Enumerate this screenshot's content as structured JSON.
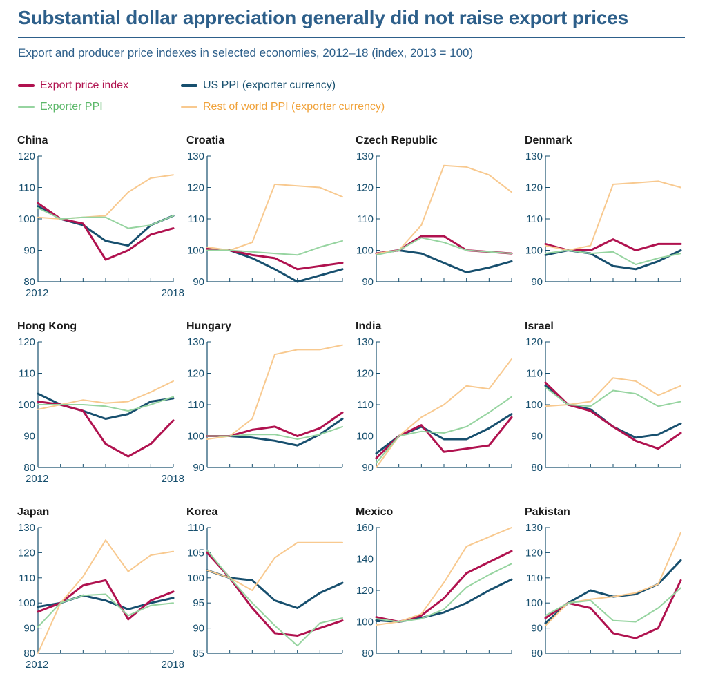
{
  "title": "Substantial dollar appreciation generally did not raise export prices",
  "subtitle": "Export and producer price indexes in selected economies, 2012–18 (index, 2013 = 100)",
  "colors": {
    "title": "#2d5f8a",
    "export_price": "#b0124f",
    "us_ppi": "#174f6e",
    "exporter_ppi": "#96d4a0",
    "row_ppi": "#f8c98f",
    "axis": "#174f6e"
  },
  "legend": {
    "export_price": "Export price index",
    "us_ppi": "US PPI (exporter currency)",
    "exporter_ppi": "Exporter PPI",
    "row_ppi": "Rest of world PPI (exporter currency)"
  },
  "chart_data": [
    {
      "type": "line",
      "title": "China",
      "x": [
        2012,
        2013,
        2014,
        2015,
        2016,
        2017,
        2018
      ],
      "xtick_labels": [
        "2012",
        "2018"
      ],
      "ylim": [
        80,
        120
      ],
      "yticks": [
        80,
        90,
        100,
        110,
        120
      ],
      "series": [
        {
          "name": "Export price index",
          "values": [
            103.5,
            100,
            100.5,
            100.5,
            97,
            98,
            101
          ]
        },
        {
          "name": "US PPI (exporter currency)",
          "values": [
            100.5,
            100,
            100.5,
            101,
            108.5,
            113,
            114
          ]
        },
        {
          "name": "Exporter PPI",
          "values": [
            104,
            100,
            98,
            93,
            91.5,
            98,
            101
          ]
        },
        {
          "name": "Rest of world PPI (exporter currency)",
          "values": [
            105,
            100,
            98.5,
            87,
            90,
            95,
            97
          ]
        }
      ]
    },
    {
      "type": "line",
      "title": "Croatia",
      "x": [
        2012,
        2013,
        2014,
        2015,
        2016,
        2017,
        2018
      ],
      "ylim": [
        90,
        130
      ],
      "yticks": [
        90,
        100,
        110,
        120,
        130
      ],
      "series": [
        {
          "name": "Export price index",
          "values": [
            100,
            100,
            99.5,
            99,
            98.5,
            101,
            103
          ]
        },
        {
          "name": "US PPI (exporter currency)",
          "values": [
            101,
            100,
            102.5,
            121,
            120.5,
            120,
            117
          ]
        },
        {
          "name": "Exporter PPI",
          "values": [
            100.5,
            100,
            97.5,
            94,
            90,
            92,
            94
          ]
        },
        {
          "name": "Rest of world PPI (exporter currency)",
          "values": [
            100.5,
            100,
            98.5,
            97.5,
            94,
            95,
            96
          ]
        }
      ]
    },
    {
      "type": "line",
      "title": "Czech Republic",
      "x": [
        2012,
        2013,
        2014,
        2015,
        2016,
        2017,
        2018
      ],
      "ylim": [
        90,
        130
      ],
      "yticks": [
        90,
        100,
        110,
        120,
        130
      ],
      "series": [
        {
          "name": "Export price index",
          "values": [
            98.5,
            100,
            104,
            102.5,
            100,
            99.5,
            99
          ]
        },
        {
          "name": "US PPI (exporter currency)",
          "values": [
            99,
            100,
            108,
            127,
            126.5,
            124,
            118.5
          ]
        },
        {
          "name": "Exporter PPI",
          "values": [
            99,
            100,
            99,
            96,
            93,
            94.5,
            96.5
          ]
        },
        {
          "name": "Rest of world PPI (exporter currency)",
          "values": [
            99,
            100,
            104.5,
            104.5,
            100,
            99.5,
            99
          ]
        }
      ]
    },
    {
      "type": "line",
      "title": "Denmark",
      "x": [
        2012,
        2013,
        2014,
        2015,
        2016,
        2017,
        2018
      ],
      "ylim": [
        90,
        130
      ],
      "yticks": [
        90,
        100,
        110,
        120,
        130
      ],
      "series": [
        {
          "name": "Export price index",
          "values": [
            99,
            100,
            99,
            99.5,
            95.5,
            97.5,
            99
          ]
        },
        {
          "name": "US PPI (exporter currency)",
          "values": [
            101.5,
            100,
            101.5,
            121,
            121.5,
            122,
            120
          ]
        },
        {
          "name": "Exporter PPI",
          "values": [
            98.5,
            100,
            99,
            95,
            94,
            96.5,
            100
          ]
        },
        {
          "name": "Rest of world PPI (exporter currency)",
          "values": [
            102,
            100,
            100,
            103.5,
            100,
            102,
            102
          ]
        }
      ]
    },
    {
      "type": "line",
      "title": "Hong Kong",
      "x": [
        2012,
        2013,
        2014,
        2015,
        2016,
        2017,
        2018
      ],
      "xtick_labels": [
        "2012",
        "2018"
      ],
      "ylim": [
        80,
        120
      ],
      "yticks": [
        80,
        90,
        100,
        110,
        120
      ],
      "series": [
        {
          "name": "Export price index",
          "values": [
            100,
            100,
            100,
            99.5,
            98,
            100,
            102.5
          ]
        },
        {
          "name": "US PPI (exporter currency)",
          "values": [
            98.5,
            100,
            101.5,
            100.5,
            101,
            104,
            107.5
          ]
        },
        {
          "name": "Exporter PPI",
          "values": [
            103.5,
            100,
            98,
            95.5,
            97,
            101,
            102
          ]
        },
        {
          "name": "Rest of world PPI (exporter currency)",
          "values": [
            101,
            100,
            98,
            87.5,
            83.5,
            87.5,
            95
          ]
        }
      ]
    },
    {
      "type": "line",
      "title": "Hungary",
      "x": [
        2012,
        2013,
        2014,
        2015,
        2016,
        2017,
        2018
      ],
      "ylim": [
        90,
        130
      ],
      "yticks": [
        90,
        100,
        110,
        120,
        130
      ],
      "series": [
        {
          "name": "Export price index",
          "values": [
            100,
            100,
            100.5,
            100.5,
            99,
            100.5,
            103
          ]
        },
        {
          "name": "US PPI (exporter currency)",
          "values": [
            99,
            100,
            105.5,
            126,
            127.5,
            127.5,
            129
          ]
        },
        {
          "name": "Exporter PPI",
          "values": [
            100,
            100,
            99.5,
            98.5,
            97,
            100.5,
            105.5
          ]
        },
        {
          "name": "Rest of world PPI (exporter currency)",
          "values": [
            100,
            100,
            102,
            103,
            100,
            102.5,
            107.5
          ]
        }
      ]
    },
    {
      "type": "line",
      "title": "India",
      "x": [
        2012,
        2013,
        2014,
        2015,
        2016,
        2017,
        2018
      ],
      "ylim": [
        90,
        130
      ],
      "yticks": [
        90,
        100,
        110,
        120,
        130
      ],
      "series": [
        {
          "name": "Export price index",
          "values": [
            91.5,
            100,
            101.5,
            101,
            103,
            107.5,
            112.5
          ]
        },
        {
          "name": "US PPI (exporter currency)",
          "values": [
            89,
            100,
            106,
            110,
            116,
            115,
            124.5
          ]
        },
        {
          "name": "Exporter PPI",
          "values": [
            94.5,
            100,
            103,
            99,
            99,
            102.5,
            107
          ]
        },
        {
          "name": "Rest of world PPI (exporter currency)",
          "values": [
            93,
            100,
            103.5,
            95,
            96,
            97,
            106
          ]
        }
      ]
    },
    {
      "type": "line",
      "title": "Israel",
      "x": [
        2012,
        2013,
        2014,
        2015,
        2016,
        2017,
        2018
      ],
      "ylim": [
        80,
        120
      ],
      "yticks": [
        80,
        90,
        100,
        110,
        120
      ],
      "series": [
        {
          "name": "Export price index",
          "values": [
            105.5,
            100,
            99.5,
            104.5,
            103.5,
            99.5,
            101
          ]
        },
        {
          "name": "US PPI (exporter currency)",
          "values": [
            99.5,
            100,
            101,
            108.5,
            107.5,
            103,
            106
          ]
        },
        {
          "name": "Exporter PPI",
          "values": [
            106,
            100,
            98.5,
            93,
            89.5,
            90.5,
            94
          ]
        },
        {
          "name": "Rest of world PPI (exporter currency)",
          "values": [
            107,
            100,
            98,
            93,
            88.5,
            86,
            91
          ]
        }
      ]
    },
    {
      "type": "line",
      "title": "Japan",
      "x": [
        2012,
        2013,
        2014,
        2015,
        2016,
        2017,
        2018
      ],
      "xtick_labels": [
        "2012",
        "2018"
      ],
      "ylim": [
        80,
        130
      ],
      "yticks": [
        80,
        90,
        100,
        110,
        120,
        130
      ],
      "series": [
        {
          "name": "Export price index",
          "values": [
            90.5,
            100,
            103,
            103.5,
            95,
            99,
            100
          ]
        },
        {
          "name": "US PPI (exporter currency)",
          "values": [
            80,
            100,
            110.5,
            125,
            112.5,
            119,
            120.5
          ]
        },
        {
          "name": "Exporter PPI",
          "values": [
            98.5,
            100,
            103,
            101,
            97.5,
            100,
            102
          ]
        },
        {
          "name": "Rest of world PPI (exporter currency)",
          "values": [
            96.5,
            100,
            107,
            109,
            93.5,
            101,
            104.5
          ]
        }
      ]
    },
    {
      "type": "line",
      "title": "Korea",
      "x": [
        2012,
        2013,
        2014,
        2015,
        2016,
        2017,
        2018
      ],
      "ylim": [
        85,
        110
      ],
      "yticks": [
        85,
        90,
        95,
        100,
        105,
        110
      ],
      "series": [
        {
          "name": "Export price index",
          "values": [
            105.5,
            100,
            95,
            90.5,
            86.5,
            91,
            92
          ]
        },
        {
          "name": "US PPI (exporter currency)",
          "values": [
            101.5,
            100,
            97.5,
            104,
            107,
            107,
            107
          ]
        },
        {
          "name": "Exporter PPI",
          "values": [
            101.5,
            100,
            99.5,
            95.5,
            94,
            97,
            99
          ]
        },
        {
          "name": "Rest of world PPI (exporter currency)",
          "values": [
            105,
            100,
            94,
            89,
            88.5,
            90,
            91.5
          ]
        }
      ]
    },
    {
      "type": "line",
      "title": "Mexico",
      "x": [
        2012,
        2013,
        2014,
        2015,
        2016,
        2017,
        2018
      ],
      "ylim": [
        80,
        160
      ],
      "yticks": [
        80,
        100,
        120,
        140,
        160
      ],
      "series": [
        {
          "name": "Export price index",
          "values": [
            102,
            100,
            102,
            108,
            122,
            130,
            137
          ]
        },
        {
          "name": "US PPI (exporter currency)",
          "values": [
            98,
            100,
            105,
            125,
            148,
            154,
            162
          ]
        },
        {
          "name": "Exporter PPI",
          "values": [
            101,
            100,
            102.5,
            106,
            112,
            120,
            127
          ]
        },
        {
          "name": "Rest of world PPI (exporter currency)",
          "values": [
            103,
            100,
            104,
            115,
            131,
            138,
            145
          ]
        }
      ]
    },
    {
      "type": "line",
      "title": "Pakistan",
      "x": [
        2012,
        2013,
        2014,
        2015,
        2016,
        2017,
        2018
      ],
      "ylim": [
        80,
        130
      ],
      "yticks": [
        80,
        90,
        100,
        110,
        120,
        130
      ],
      "series": [
        {
          "name": "Export price index",
          "values": [
            95,
            100,
            101,
            93,
            92.5,
            98,
            106
          ]
        },
        {
          "name": "US PPI (exporter currency)",
          "values": [
            91,
            100,
            101.5,
            102.5,
            104,
            107.5,
            128
          ]
        },
        {
          "name": "Exporter PPI",
          "values": [
            92,
            100,
            105,
            102.5,
            103.5,
            107.5,
            117
          ]
        },
        {
          "name": "Rest of world PPI (exporter currency)",
          "values": [
            94,
            100,
            98,
            88,
            86,
            90,
            109
          ]
        }
      ]
    }
  ]
}
